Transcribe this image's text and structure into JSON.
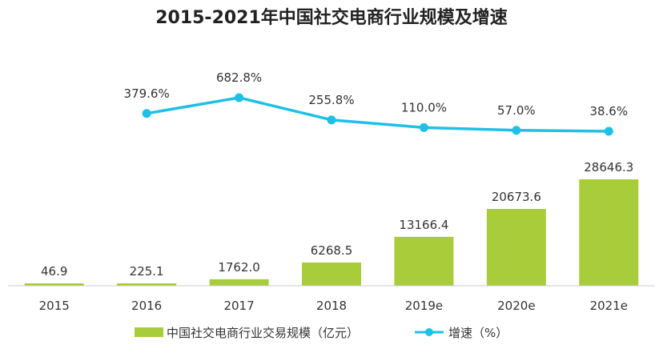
{
  "chart_data": {
    "type": "bar+line",
    "title": "2015-2021年中国社交电商行业规模及增速",
    "categories": [
      "2015",
      "2016",
      "2017",
      "2018",
      "2019e",
      "2020e",
      "2021e"
    ],
    "series": [
      {
        "name": "中国社交电商行业交易规模（亿元）",
        "type": "bar",
        "values": [
          46.9,
          225.1,
          1762.0,
          6268.5,
          13166.4,
          20673.6,
          28646.3
        ],
        "labels": [
          "46.9",
          "225.1",
          "1762.0",
          "6268.5",
          "13166.4",
          "20673.6",
          "28646.3"
        ],
        "color": "#a8cc3a"
      },
      {
        "name": "增速（%）",
        "type": "line",
        "values": [
          null,
          379.6,
          682.8,
          255.8,
          110.0,
          57.0,
          38.6
        ],
        "labels": [
          "",
          "379.6%",
          "682.8%",
          "255.8%",
          "110.0%",
          "57.0%",
          "38.6%"
        ],
        "color": "#1ec0e6"
      }
    ],
    "legend_position": "bottom",
    "grid": false
  }
}
